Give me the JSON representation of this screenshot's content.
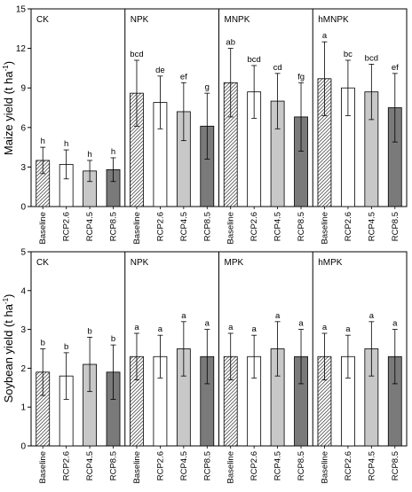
{
  "chart_data": [
    {
      "type": "bar",
      "ylabel_main": "Maize yield (t ha",
      "ylabel_sup": "-1",
      "ylabel_tail": ")",
      "ylim": [
        0,
        15
      ],
      "yticks": [
        "0",
        "3",
        "6",
        "9",
        "12",
        "15"
      ],
      "categories": [
        "Baseline",
        "RCP2.6",
        "RCP4.5",
        "RCP8.5"
      ],
      "fills": [
        "hatch",
        "#ffffff",
        "#c8c8c8",
        "#7a7a7a"
      ],
      "panels": [
        {
          "name": "CK",
          "values": [
            3.5,
            3.2,
            2.7,
            2.8
          ],
          "errors": [
            1.0,
            1.1,
            0.8,
            0.9
          ],
          "letters": [
            "h",
            "h",
            "h",
            "h"
          ]
        },
        {
          "name": "NPK",
          "values": [
            8.6,
            7.9,
            7.2,
            6.1
          ],
          "errors": [
            2.5,
            2.0,
            2.2,
            2.5
          ],
          "letters": [
            "bcd",
            "de",
            "ef",
            "g"
          ]
        },
        {
          "name": "MNPK",
          "values": [
            9.4,
            8.7,
            8.0,
            6.8
          ],
          "errors": [
            2.6,
            2.0,
            2.1,
            2.6
          ],
          "letters": [
            "ab",
            "bcd",
            "cd",
            "fg"
          ]
        },
        {
          "name": "hMNPK",
          "values": [
            9.7,
            9.0,
            8.7,
            7.5
          ],
          "errors": [
            2.8,
            2.1,
            2.1,
            2.6
          ],
          "letters": [
            "a",
            "bc",
            "bcd",
            "ef"
          ]
        }
      ]
    },
    {
      "type": "bar",
      "ylabel_main": "Soybean yield (t ha",
      "ylabel_sup": "-1",
      "ylabel_tail": ")",
      "ylim": [
        0,
        5
      ],
      "yticks": [
        "0",
        "1",
        "2",
        "3",
        "4",
        "5"
      ],
      "categories": [
        "Baseline",
        "RCP2.6",
        "RCP4.5",
        "RCP8.5"
      ],
      "fills": [
        "hatch",
        "#ffffff",
        "#c8c8c8",
        "#7a7a7a"
      ],
      "panels": [
        {
          "name": "CK",
          "values": [
            1.9,
            1.8,
            2.1,
            1.9
          ],
          "errors": [
            0.6,
            0.6,
            0.7,
            0.7
          ],
          "letters": [
            "b",
            "b",
            "b",
            "b"
          ]
        },
        {
          "name": "NPK",
          "values": [
            2.3,
            2.3,
            2.5,
            2.3
          ],
          "errors": [
            0.6,
            0.55,
            0.7,
            0.7
          ],
          "letters": [
            "a",
            "a",
            "a",
            "a"
          ]
        },
        {
          "name": "MPK",
          "values": [
            2.3,
            2.3,
            2.5,
            2.3
          ],
          "errors": [
            0.6,
            0.55,
            0.7,
            0.7
          ],
          "letters": [
            "a",
            "a",
            "a",
            "a"
          ]
        },
        {
          "name": "hMPK",
          "values": [
            2.3,
            2.3,
            2.5,
            2.3
          ],
          "errors": [
            0.6,
            0.55,
            0.7,
            0.7
          ],
          "letters": [
            "a",
            "a",
            "a",
            "a"
          ]
        }
      ]
    }
  ]
}
